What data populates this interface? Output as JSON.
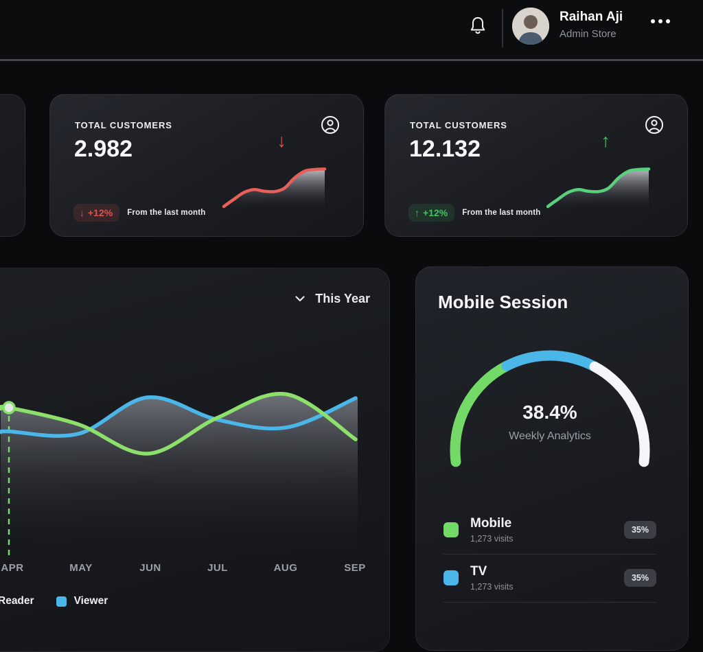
{
  "header": {
    "user_name": "Raihan Aji",
    "user_role": "Admin Store"
  },
  "icons": {
    "notifications": "bell",
    "stat_card_corner": "person-in-circle",
    "filter": "chevron-down",
    "more": "ellipsis-three-dots"
  },
  "stat_cards": [
    {
      "title": "TOTAL CUSTOMERS",
      "value": "2.982",
      "trend": "down",
      "arrow": "↓",
      "badge_text": "+12%",
      "note": "From the last month",
      "accent": "#e0524e"
    },
    {
      "title": "TOTAL CUSTOMERS",
      "value": "12.132",
      "trend": "up",
      "arrow": "↑",
      "badge_text": "+12%",
      "note": "From the last month",
      "accent": "#3ec465"
    }
  ],
  "sparkline": {
    "values": [
      5,
      22,
      38,
      45,
      41,
      40,
      48,
      72,
      88,
      92,
      93
    ]
  },
  "chart_data": [
    {
      "type": "line",
      "filter_label": "This Year",
      "categories": [
        "APR",
        "MAY",
        "JUN",
        "JUL",
        "AUG",
        "SEP"
      ],
      "series": [
        {
          "name": "Reader",
          "color": "#8ce06b",
          "values": [
            73,
            52,
            15,
            60,
            90,
            33
          ]
        },
        {
          "name": "Viewer",
          "color": "#4bb7e8",
          "values": [
            43,
            40,
            86,
            58,
            48,
            85
          ]
        }
      ],
      "ylim": [
        0,
        100
      ],
      "grid": false,
      "legend_position": "bottom-left",
      "area_fill": "gray-gradient-under-upper-envelope",
      "highlight": {
        "series": "Reader",
        "category": "APR",
        "style": "dot-with-dashed-vertical-line"
      }
    },
    {
      "type": "gauge",
      "title": "Mobile Session",
      "center_value": "38.4%",
      "center_label": "Weekly Analytics",
      "arc": {
        "start_deg": 187,
        "end_deg": -7
      },
      "segments": [
        {
          "name": "Mobile",
          "color": "#74da67",
          "visits": "1,273 visits",
          "share": "35%",
          "arc_fraction": 0.36
        },
        {
          "name": "TV",
          "color": "#4bb7e8",
          "visits": "1,273 visits",
          "share": "35%",
          "arc_fraction": 0.285
        },
        {
          "name": "remaining",
          "color": "#f4f6f7",
          "arc_fraction": 0.355
        }
      ]
    }
  ]
}
